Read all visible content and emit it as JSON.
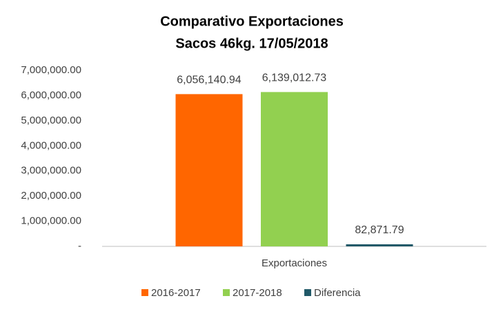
{
  "chart_data": {
    "type": "bar",
    "title": "Comparativo Exportaciones",
    "subtitle": "Sacos 46kg. 17/05/2018",
    "categories": [
      "Exportaciones"
    ],
    "series": [
      {
        "name": "2016-2017",
        "color": "#ff6600",
        "values": [
          6056140.94
        ],
        "value_labels": [
          "6,056,140.94"
        ]
      },
      {
        "name": "2017-2018",
        "color": "#92d050",
        "values": [
          6139012.73
        ],
        "value_labels": [
          "6,139,012.73"
        ]
      },
      {
        "name": "Diferencia",
        "color": "#215968",
        "values": [
          82871.79
        ],
        "value_labels": [
          "82,871.79"
        ]
      }
    ],
    "ylim": [
      0,
      7000000
    ],
    "yticks": [
      {
        "value": 0,
        "label": "-"
      },
      {
        "value": 1000000,
        "label": "1,000,000.00"
      },
      {
        "value": 2000000,
        "label": "2,000,000.00"
      },
      {
        "value": 3000000,
        "label": "3,000,000.00"
      },
      {
        "value": 4000000,
        "label": "4,000,000.00"
      },
      {
        "value": 5000000,
        "label": "5,000,000.00"
      },
      {
        "value": 6000000,
        "label": "6,000,000.00"
      },
      {
        "value": 7000000,
        "label": "7,000,000.00"
      }
    ],
    "grid": false,
    "legend": "bottom"
  }
}
